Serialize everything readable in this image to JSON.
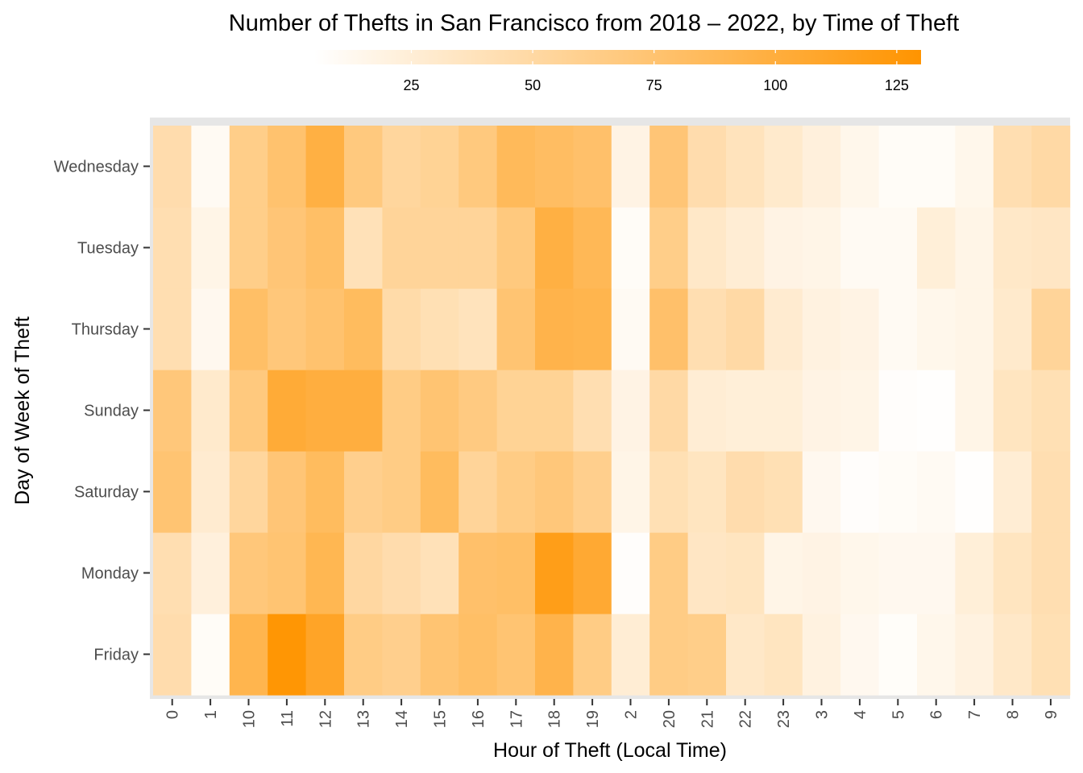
{
  "chart_data": {
    "type": "heatmap",
    "title": "Number of Thefts in San Francisco from 2018 – 2022, by Time of Theft",
    "xlabel": "Hour of Theft (Local Time)",
    "ylabel": "Day of Week of Theft",
    "x_categories": [
      "0",
      "1",
      "10",
      "11",
      "12",
      "13",
      "14",
      "15",
      "16",
      "17",
      "18",
      "19",
      "2",
      "20",
      "21",
      "22",
      "23",
      "3",
      "4",
      "5",
      "6",
      "7",
      "8",
      "9"
    ],
    "y_categories": [
      "Friday",
      "Monday",
      "Saturday",
      "Sunday",
      "Thursday",
      "Tuesday",
      "Wednesday"
    ],
    "colorscale": {
      "low": "#ffffff",
      "high": "#ff9400",
      "min": 0,
      "max": 130
    },
    "legend": {
      "position": "top",
      "ticks": [
        25,
        50,
        75,
        100,
        125
      ]
    },
    "grid": true,
    "values": [
      [
        42,
        4,
        90,
        128,
        110,
        62,
        58,
        72,
        78,
        72,
        92,
        62,
        22,
        62,
        60,
        28,
        32,
        16,
        8,
        3,
        10,
        16,
        28,
        38
      ],
      [
        40,
        18,
        68,
        72,
        88,
        48,
        42,
        36,
        76,
        78,
        118,
        104,
        2,
        62,
        30,
        32,
        12,
        14,
        10,
        8,
        8,
        20,
        32,
        40
      ],
      [
        72,
        24,
        50,
        70,
        82,
        58,
        62,
        82,
        52,
        62,
        68,
        58,
        12,
        38,
        32,
        42,
        38,
        8,
        2,
        4,
        6,
        1,
        22,
        40
      ],
      [
        68,
        26,
        66,
        102,
        98,
        98,
        62,
        72,
        64,
        54,
        54,
        40,
        14,
        46,
        22,
        20,
        20,
        14,
        12,
        2,
        1,
        12,
        32,
        38
      ],
      [
        40,
        8,
        78,
        68,
        74,
        82,
        44,
        38,
        34,
        72,
        92,
        90,
        6,
        76,
        40,
        46,
        24,
        16,
        14,
        6,
        10,
        12,
        26,
        52
      ],
      [
        40,
        12,
        60,
        70,
        78,
        36,
        52,
        52,
        52,
        66,
        96,
        86,
        4,
        60,
        28,
        22,
        14,
        12,
        6,
        6,
        20,
        12,
        28,
        30
      ],
      [
        42,
        6,
        60,
        74,
        96,
        66,
        50,
        54,
        66,
        84,
        80,
        76,
        14,
        70,
        42,
        34,
        26,
        18,
        10,
        4,
        4,
        10,
        40,
        46
      ]
    ]
  }
}
